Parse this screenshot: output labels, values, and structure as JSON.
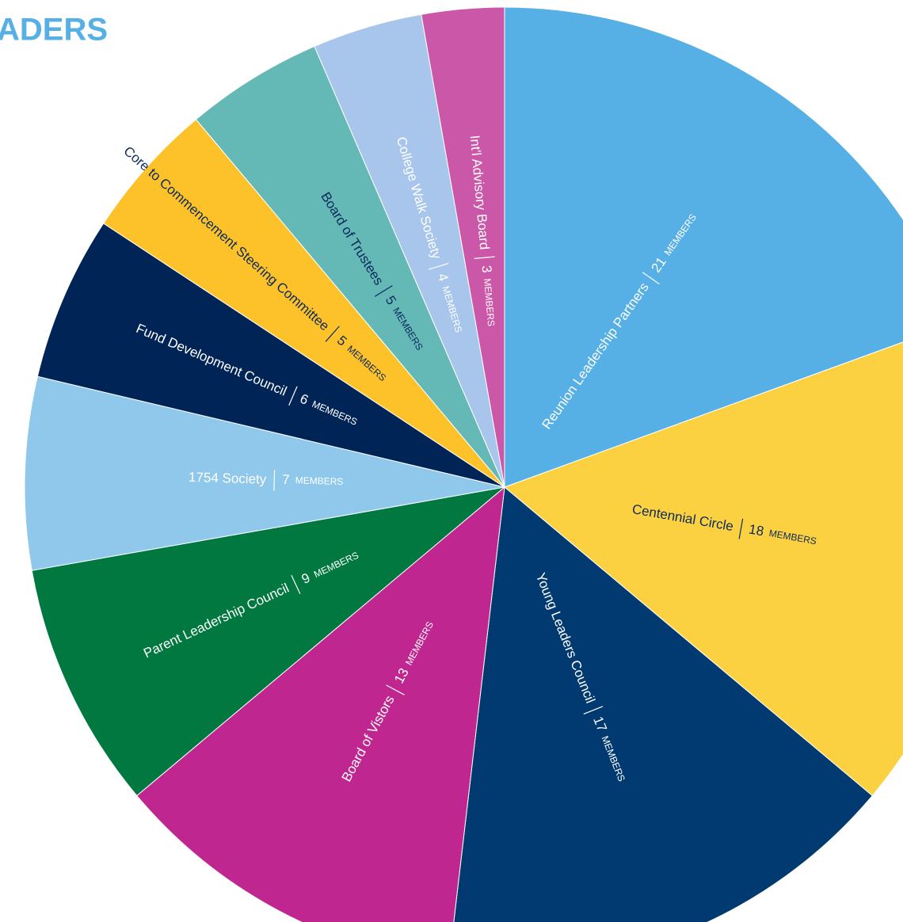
{
  "chart_data": {
    "type": "pie",
    "title": "ADERS",
    "title_color": "#56b0e6",
    "unit_label": "MEMBERS",
    "categories": [
      "Reunion Leadership Partners",
      "Centennial Circle",
      "Young Leaders Council",
      "Board of Vistors",
      "Parent Leadership Council",
      "1754 Society",
      "Fund Development Council",
      "Core to Commencement Steering Committee",
      "Board of Trustees",
      "College Walk Society",
      "Int'l Advisory Board"
    ],
    "values": [
      21,
      18,
      17,
      13,
      9,
      7,
      6,
      5,
      5,
      4,
      3
    ],
    "colors": [
      "#56b0e6",
      "#fcd141",
      "#003a70",
      "#c0268f",
      "#007840",
      "#8fc8ea",
      "#002455",
      "#fdc12a",
      "#64b8b5",
      "#a8c6ec",
      "#cb57a8"
    ],
    "label_colors": [
      "#ffffff",
      "#0b2a5b",
      "#ffffff",
      "#ffffff",
      "#ffffff",
      "#ffffff",
      "#ffffff",
      "#0b2a5b",
      "#0b2a5b",
      "#ffffff",
      "#ffffff"
    ]
  }
}
